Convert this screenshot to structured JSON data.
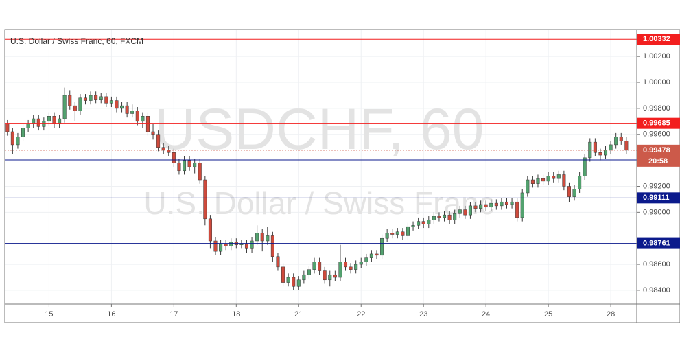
{
  "chart_data": {
    "type": "candlestick",
    "title": "U.S. Dollar / Swiss Franc, 60, FXCM",
    "watermark": "USDCHF, 60",
    "watermark_subtitle": "U.S. Dollar / Swiss Franc",
    "up_color": "#53a26f",
    "down_color": "#cf4a3c",
    "grid": true,
    "xlim": [
      -0.5,
      121
    ],
    "xticks": [
      {
        "value": 8,
        "label": "15"
      },
      {
        "value": 20,
        "label": "16"
      },
      {
        "value": 32,
        "label": "17"
      },
      {
        "value": 44,
        "label": "18"
      },
      {
        "value": 56,
        "label": "21"
      },
      {
        "value": 68,
        "label": "22"
      },
      {
        "value": 80,
        "label": "23"
      },
      {
        "value": 92,
        "label": "24"
      },
      {
        "value": 104,
        "label": "25"
      },
      {
        "value": 116,
        "label": "28"
      }
    ],
    "ylim": [
      0.98294,
      1.00407
    ],
    "yticks": [
      {
        "value": 0.984,
        "label": "0.98400"
      },
      {
        "value": 0.986,
        "label": "0.98600"
      },
      {
        "value": 0.99,
        "label": "0.99000"
      },
      {
        "value": 0.992,
        "label": "0.99200"
      },
      {
        "value": 0.996,
        "label": "0.99600"
      },
      {
        "value": 0.998,
        "label": "0.99800"
      },
      {
        "value": 1.0,
        "label": "1.00000"
      },
      {
        "value": 1.002,
        "label": "1.00200"
      }
    ],
    "levels": [
      {
        "value": 1.00332,
        "color": "#f21f1f"
      },
      {
        "value": 0.99685,
        "color": "#f21f1f"
      },
      {
        "value": 0.99403,
        "color": "#0b1a8c"
      },
      {
        "value": 0.99111,
        "color": "#0b1a8c"
      },
      {
        "value": 0.98761,
        "color": "#0b1a8c"
      }
    ],
    "last_price": {
      "value": 0.99478,
      "color": "#cc5a4a",
      "countdown": "20:58"
    },
    "open": [
      0.9968,
      0.9962,
      0.9952,
      0.9958,
      0.9965,
      0.9968,
      0.9972,
      0.9966,
      0.997,
      0.9974,
      0.9968,
      0.9972,
      0.999,
      0.9982,
      0.9978,
      0.9988,
      0.9986,
      0.999,
      0.9987,
      0.9989,
      0.9984,
      0.9986,
      0.998,
      0.9982,
      0.9976,
      0.9978,
      0.997,
      0.9974,
      0.9962,
      0.996,
      0.995,
      0.9948,
      0.9946,
      0.9938,
      0.9932,
      0.994,
      0.9935,
      0.9938,
      0.9925,
      0.9895,
      0.9878,
      0.987,
      0.9876,
      0.9874,
      0.9877,
      0.9875,
      0.9876,
      0.9872,
      0.9878,
      0.9884,
      0.9878,
      0.9882,
      0.9866,
      0.9858,
      0.9846,
      0.985,
      0.9843,
      0.9848,
      0.9852,
      0.9856,
      0.9862,
      0.9855,
      0.9848,
      0.9852,
      0.985,
      0.9862,
      0.9858,
      0.9856,
      0.986,
      0.9862,
      0.9865,
      0.9868,
      0.9867,
      0.988,
      0.9884,
      0.9883,
      0.9885,
      0.9882,
      0.9889,
      0.989,
      0.9893,
      0.9891,
      0.9894,
      0.9897,
      0.9896,
      0.9898,
      0.9894,
      0.9899,
      0.9902,
      0.9898,
      0.9905,
      0.9903,
      0.9906,
      0.9904,
      0.9907,
      0.9905,
      0.9908,
      0.9906,
      0.9908,
      0.9896,
      0.9915,
      0.9925,
      0.9922,
      0.9926,
      0.9924,
      0.9928,
      0.9926,
      0.9929,
      0.992,
      0.9912,
      0.9918,
      0.9928,
      0.9942,
      0.9954,
      0.9946,
      0.9944,
      0.9948,
      0.9952,
      0.9958,
      0.9955
    ],
    "high": [
      0.9971,
      0.9965,
      0.9961,
      0.9968,
      0.9971,
      0.9975,
      0.9975,
      0.9973,
      0.9977,
      0.9977,
      0.9975,
      0.9996,
      0.9994,
      0.9985,
      0.9991,
      0.9991,
      0.9993,
      0.9993,
      0.9992,
      0.9992,
      0.9989,
      0.9989,
      0.9985,
      0.9985,
      0.9983,
      0.9981,
      0.9977,
      0.9977,
      0.9968,
      0.9963,
      0.9953,
      0.9951,
      0.9949,
      0.9941,
      0.9943,
      0.9943,
      0.9941,
      0.9941,
      0.9928,
      0.9898,
      0.9881,
      0.9879,
      0.9879,
      0.988,
      0.988,
      0.9879,
      0.9879,
      0.9881,
      0.989,
      0.9887,
      0.9889,
      0.9885,
      0.9869,
      0.9861,
      0.9853,
      0.9853,
      0.9851,
      0.9855,
      0.9859,
      0.9865,
      0.9865,
      0.9858,
      0.9855,
      0.9855,
      0.9875,
      0.9865,
      0.9861,
      0.9863,
      0.9865,
      0.9868,
      0.9871,
      0.9871,
      0.9883,
      0.9887,
      0.9887,
      0.9888,
      0.9888,
      0.9892,
      0.9893,
      0.9896,
      0.9896,
      0.9897,
      0.99,
      0.99,
      0.9901,
      0.9901,
      0.9902,
      0.9905,
      0.9905,
      0.9908,
      0.9908,
      0.9909,
      0.9909,
      0.991,
      0.991,
      0.9911,
      0.9911,
      0.9911,
      0.9911,
      0.9918,
      0.9928,
      0.9928,
      0.9929,
      0.9929,
      0.9931,
      0.9931,
      0.9932,
      0.9932,
      0.9923,
      0.9921,
      0.9931,
      0.9945,
      0.9957,
      0.9957,
      0.9949,
      0.9951,
      0.9955,
      0.9961,
      0.9961,
      0.9958
    ],
    "low": [
      0.9959,
      0.9945,
      0.9949,
      0.9955,
      0.9962,
      0.9965,
      0.9963,
      0.9963,
      0.9967,
      0.9965,
      0.9965,
      0.9969,
      0.9979,
      0.997,
      0.9975,
      0.9983,
      0.9983,
      0.9984,
      0.9984,
      0.9981,
      0.9981,
      0.9977,
      0.9977,
      0.9973,
      0.9973,
      0.9967,
      0.9965,
      0.9959,
      0.9956,
      0.9947,
      0.9945,
      0.9943,
      0.9935,
      0.9929,
      0.9929,
      0.9932,
      0.993,
      0.9922,
      0.989,
      0.9872,
      0.9867,
      0.9867,
      0.9871,
      0.9871,
      0.9872,
      0.9872,
      0.9869,
      0.9869,
      0.9875,
      0.987,
      0.9875,
      0.9862,
      0.9855,
      0.9843,
      0.9843,
      0.984,
      0.984,
      0.9845,
      0.9849,
      0.9853,
      0.9852,
      0.9845,
      0.9843,
      0.9847,
      0.9847,
      0.9855,
      0.9853,
      0.9853,
      0.9857,
      0.9859,
      0.9862,
      0.9864,
      0.9864,
      0.9877,
      0.988,
      0.988,
      0.9879,
      0.9879,
      0.9886,
      0.9887,
      0.9888,
      0.9888,
      0.9891,
      0.9893,
      0.9893,
      0.9891,
      0.9891,
      0.9896,
      0.9895,
      0.9895,
      0.99,
      0.99,
      0.9901,
      0.9901,
      0.9902,
      0.9902,
      0.9903,
      0.9903,
      0.9893,
      0.9893,
      0.9912,
      0.9919,
      0.9919,
      0.9921,
      0.9921,
      0.9923,
      0.9923,
      0.9917,
      0.9908,
      0.9909,
      0.9915,
      0.9925,
      0.9939,
      0.9943,
      0.994,
      0.9941,
      0.9945,
      0.9949,
      0.9952,
      0.9945
    ],
    "close": [
      0.9962,
      0.9952,
      0.9958,
      0.9965,
      0.9968,
      0.9972,
      0.9966,
      0.997,
      0.9974,
      0.9968,
      0.9972,
      0.999,
      0.9982,
      0.9978,
      0.9988,
      0.9986,
      0.999,
      0.9987,
      0.9989,
      0.9984,
      0.9986,
      0.998,
      0.9982,
      0.9976,
      0.9978,
      0.997,
      0.9974,
      0.9962,
      0.996,
      0.995,
      0.9948,
      0.9946,
      0.9938,
      0.9932,
      0.994,
      0.9935,
      0.9938,
      0.9925,
      0.9895,
      0.9878,
      0.987,
      0.9876,
      0.9874,
      0.9877,
      0.9875,
      0.9876,
      0.9872,
      0.9878,
      0.9884,
      0.9878,
      0.9882,
      0.9866,
      0.9858,
      0.9846,
      0.985,
      0.9843,
      0.9848,
      0.9852,
      0.9856,
      0.9862,
      0.9855,
      0.9848,
      0.9852,
      0.985,
      0.9862,
      0.9858,
      0.9856,
      0.986,
      0.9862,
      0.9865,
      0.9868,
      0.9867,
      0.988,
      0.9884,
      0.9883,
      0.9885,
      0.9882,
      0.9889,
      0.989,
      0.9893,
      0.9891,
      0.9894,
      0.9897,
      0.9896,
      0.9898,
      0.9894,
      0.9899,
      0.9902,
      0.9898,
      0.9905,
      0.9903,
      0.9906,
      0.9904,
      0.9907,
      0.9905,
      0.9908,
      0.9906,
      0.9908,
      0.9896,
      0.9915,
      0.9925,
      0.9922,
      0.9926,
      0.9924,
      0.9928,
      0.9926,
      0.9929,
      0.992,
      0.9912,
      0.9918,
      0.9928,
      0.9942,
      0.9954,
      0.9946,
      0.9944,
      0.9948,
      0.9952,
      0.9958,
      0.9955,
      0.99478
    ]
  }
}
